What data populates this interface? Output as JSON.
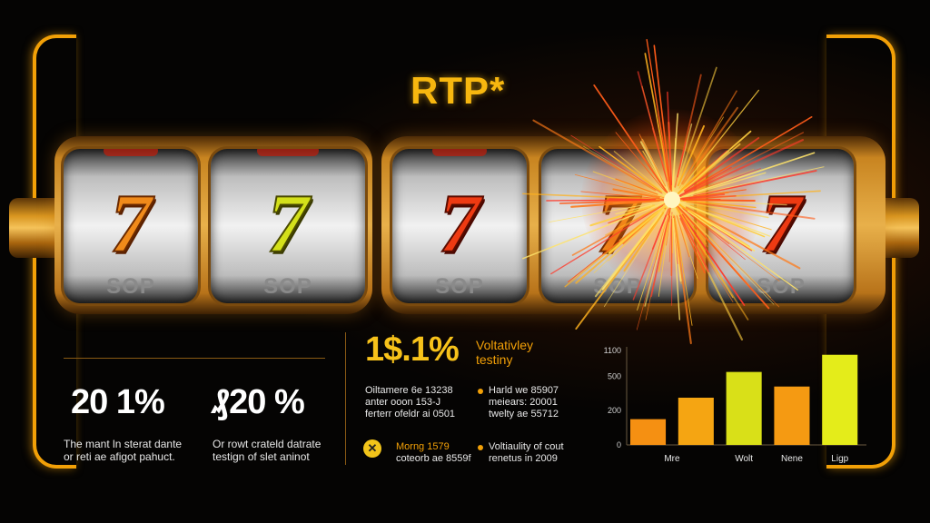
{
  "title": "RTP*",
  "reels": [
    {
      "symbol": "7",
      "label": "SOP",
      "color": "orange"
    },
    {
      "symbol": "7",
      "label": "SOP",
      "color": "yellow"
    },
    {
      "symbol": "7",
      "label": "SOP",
      "color": "red"
    },
    {
      "symbol": "7",
      "label": "SOP",
      "color": "orange"
    },
    {
      "symbol": "7",
      "label": "SOP",
      "color": "red"
    }
  ],
  "left_stats": [
    {
      "value": "20 1%",
      "caption_line1": "The mant ln sterat dante",
      "caption_line2": "or reti ae afigot pahuct."
    },
    {
      "value": "₰20 %",
      "caption_line1": "Or rowt crateld datrate",
      "caption_line2": "testign of slet aninot"
    }
  ],
  "middle": {
    "big_value": "1$.1%",
    "heading_line1": "Voltativley",
    "heading_line2": "testiny",
    "col1": [
      "Oiltamere 6e 13238",
      "anter ooon 153-J",
      "ferterr ofeldr ai 0501"
    ],
    "col2": [
      "Harld we 85907",
      "meiears: 20001",
      "twelty ae 55712"
    ],
    "icon_text_line1": "Morng 1579",
    "icon_text_line2": "coteorb ae 8559f",
    "note_line1": "Voltiaulity of cout",
    "note_line2": "renetus in 2009"
  },
  "chart_data": {
    "type": "bar",
    "categories": [
      "Mre",
      "",
      "Wolt",
      "Nene",
      "Ligp"
    ],
    "values": [
      30,
      55,
      85,
      68,
      105
    ],
    "yticks": [
      "0",
      "200",
      "500",
      "1100"
    ],
    "ytick_values": [
      0,
      40,
      80,
      110
    ],
    "ylim": [
      0,
      110
    ],
    "colors": [
      "#f59012",
      "#f5a512",
      "#d9e018",
      "#f59a12",
      "#e4ec1a"
    ]
  },
  "colors": {
    "accent": "#f2a007",
    "title": "#f7b70f"
  }
}
